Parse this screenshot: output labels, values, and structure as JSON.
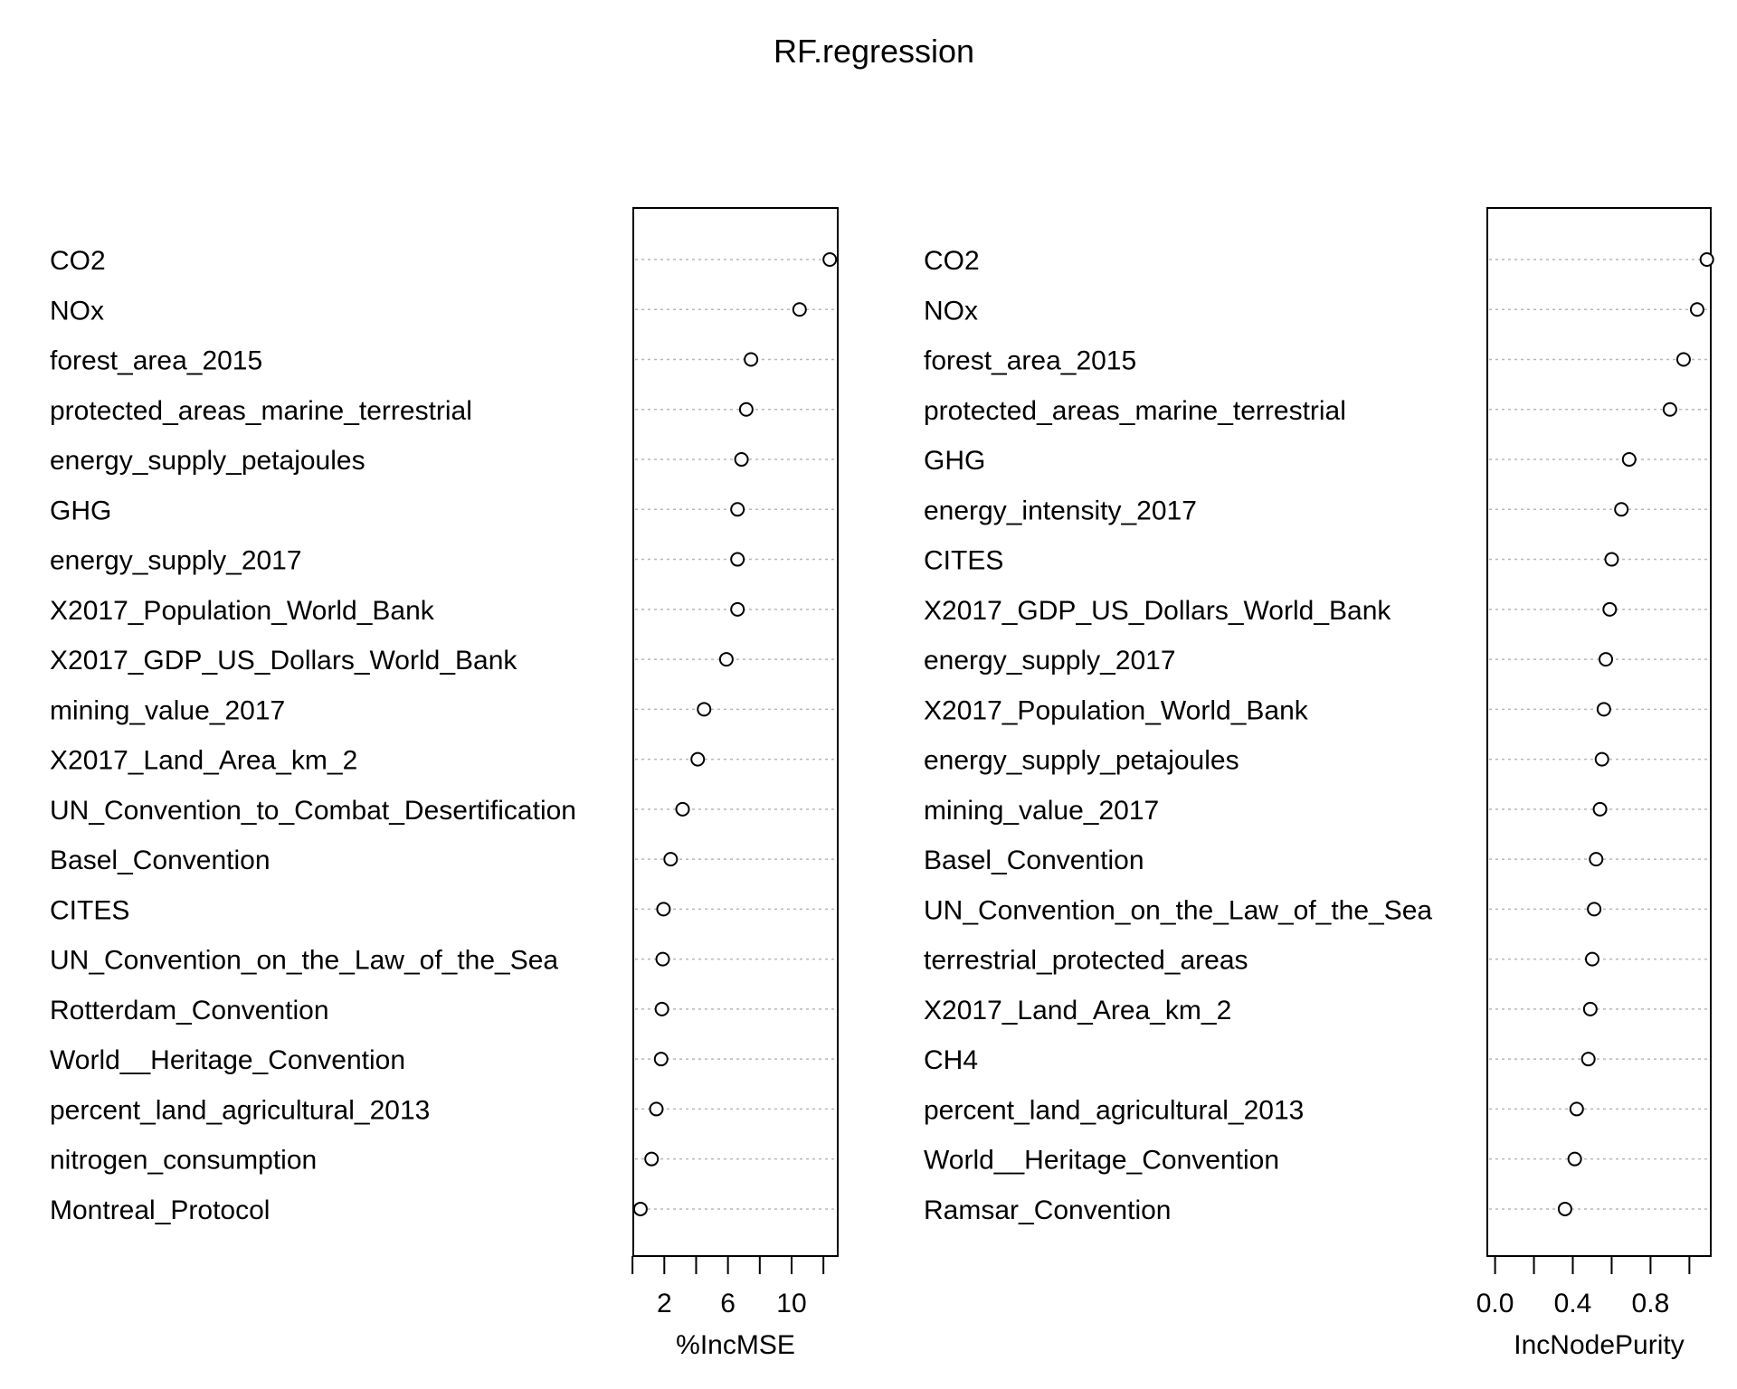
{
  "chart_data": {
    "type": "dotplot",
    "title": "RF.regression",
    "panels": [
      {
        "xlabel": "%IncMSE",
        "xlim": [
          0.05,
          12.9
        ],
        "ticks": [
          0,
          2,
          4,
          6,
          8,
          10,
          12
        ],
        "tick_labels": [
          "",
          "2",
          "",
          "6",
          "",
          "10",
          ""
        ],
        "items": [
          {
            "label": "CO2",
            "value": 12.4
          },
          {
            "label": "NOx",
            "value": 10.5
          },
          {
            "label": "forest_area_2015",
            "value": 7.45
          },
          {
            "label": "protected_areas_marine_terrestrial",
            "value": 7.15
          },
          {
            "label": "energy_supply_petajoules",
            "value": 6.85
          },
          {
            "label": "GHG",
            "value": 6.6
          },
          {
            "label": "energy_supply_2017",
            "value": 6.6
          },
          {
            "label": "X2017_Population_World_Bank",
            "value": 6.6
          },
          {
            "label": "X2017_GDP_US_Dollars_World_Bank",
            "value": 5.9
          },
          {
            "label": "mining_value_2017",
            "value": 4.5
          },
          {
            "label": "X2017_Land_Area_km_2",
            "value": 4.1
          },
          {
            "label": "UN_Convention_to_Combat_Desertification",
            "value": 3.15
          },
          {
            "label": "Basel_Convention",
            "value": 2.4
          },
          {
            "label": "CITES",
            "value": 1.95
          },
          {
            "label": "UN_Convention_on_the_Law_of_the_Sea",
            "value": 1.9
          },
          {
            "label": "Rotterdam_Convention",
            "value": 1.85
          },
          {
            "label": "World__Heritage_Convention",
            "value": 1.8
          },
          {
            "label": "percent_land_agricultural_2013",
            "value": 1.5
          },
          {
            "label": "nitrogen_consumption",
            "value": 1.2
          },
          {
            "label": "Montreal_Protocol",
            "value": 0.5
          }
        ]
      },
      {
        "xlabel": "IncNodePurity",
        "xlim": [
          -0.04,
          1.11
        ],
        "ticks": [
          0.0,
          0.2,
          0.4,
          0.6,
          0.8,
          1.0
        ],
        "tick_labels": [
          "0.0",
          "",
          "0.4",
          "",
          "0.8",
          ""
        ],
        "items": [
          {
            "label": "CO2",
            "value": 1.09
          },
          {
            "label": "NOx",
            "value": 1.04
          },
          {
            "label": "forest_area_2015",
            "value": 0.97
          },
          {
            "label": "protected_areas_marine_terrestrial",
            "value": 0.9
          },
          {
            "label": "GHG",
            "value": 0.69
          },
          {
            "label": "energy_intensity_2017",
            "value": 0.65
          },
          {
            "label": "CITES",
            "value": 0.6
          },
          {
            "label": "X2017_GDP_US_Dollars_World_Bank",
            "value": 0.59
          },
          {
            "label": "energy_supply_2017",
            "value": 0.57
          },
          {
            "label": "X2017_Population_World_Bank",
            "value": 0.56
          },
          {
            "label": "energy_supply_petajoules",
            "value": 0.55
          },
          {
            "label": "mining_value_2017",
            "value": 0.54
          },
          {
            "label": "Basel_Convention",
            "value": 0.52
          },
          {
            "label": "UN_Convention_on_the_Law_of_the_Sea",
            "value": 0.51
          },
          {
            "label": "terrestrial_protected_areas",
            "value": 0.5
          },
          {
            "label": "X2017_Land_Area_km_2",
            "value": 0.49
          },
          {
            "label": "CH4",
            "value": 0.48
          },
          {
            "label": "percent_land_agricultural_2013",
            "value": 0.42
          },
          {
            "label": "World__Heritage_Convention",
            "value": 0.41
          },
          {
            "label": "Ramsar_Convention",
            "value": 0.36
          }
        ]
      }
    ]
  }
}
